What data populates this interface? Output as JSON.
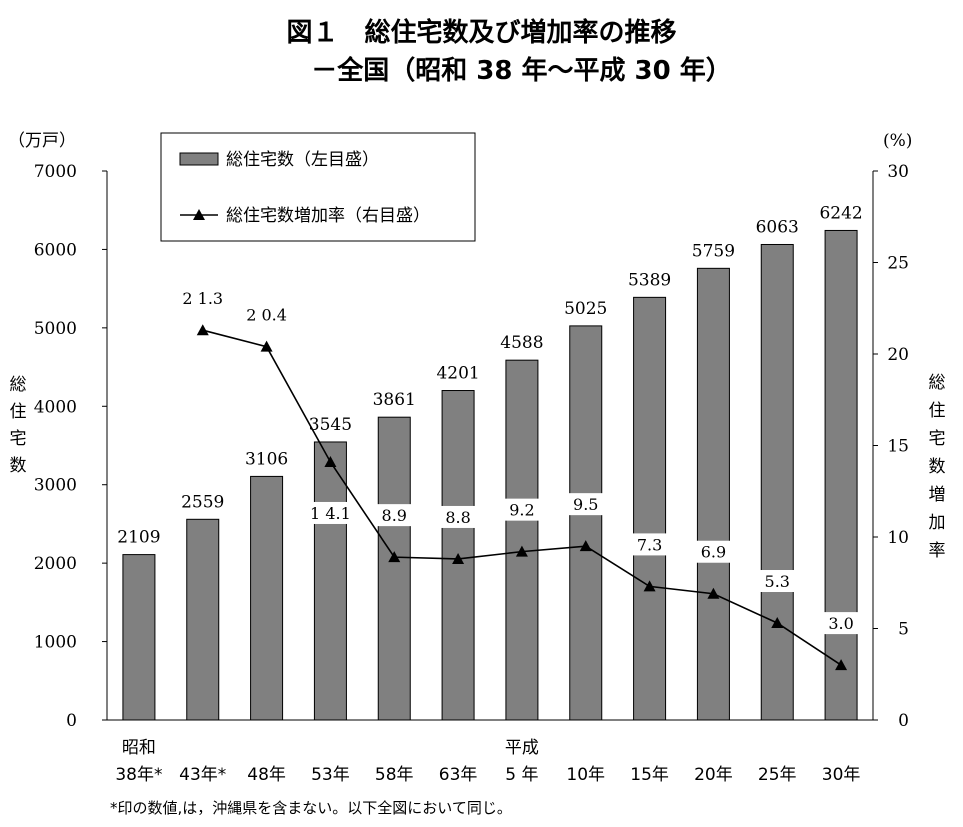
{
  "title_line1": "図１　総住宅数及び増加率の推移",
  "title_line2": "－全国（昭和 38 年～平成 30 年）",
  "footnote": "*印の数値,は，沖縄県を含まない。以下全図において同じ。",
  "colors": {
    "bar": "#808080",
    "line": "#000000"
  },
  "chart_data": {
    "type": "bar",
    "categories": [
      "38年*",
      "43年*",
      "48年",
      "53年",
      "58年",
      "63年",
      "5 年",
      "10年",
      "15年",
      "20年",
      "25年",
      "30年"
    ],
    "era_labels": [
      {
        "text": "昭和",
        "category_index": 0
      },
      {
        "text": "平成",
        "category_index": 6
      }
    ],
    "y_left": {
      "unit": "（万戸）",
      "label": "総住宅数",
      "ylim": [
        0,
        7000
      ],
      "ticks": [
        0,
        1000,
        2000,
        3000,
        4000,
        5000,
        6000,
        7000
      ]
    },
    "y_right": {
      "unit": "(%)",
      "label": "総住宅数増加率",
      "ylim": [
        0,
        30
      ],
      "ticks": [
        0,
        5,
        10,
        15,
        20,
        25,
        30
      ]
    },
    "series": [
      {
        "name": "総住宅数（左目盛）",
        "type": "bar",
        "axis": "left",
        "values": [
          2109,
          2559,
          3106,
          3545,
          3861,
          4201,
          4588,
          5025,
          5389,
          5759,
          6063,
          6242
        ],
        "labels": [
          "2109",
          "2559",
          "3106",
          "3545",
          "3861",
          "4201",
          "4588",
          "5025",
          "5389",
          "5759",
          "6063",
          "6242"
        ]
      },
      {
        "name": "総住宅数増加率（右目盛）",
        "type": "line",
        "axis": "right",
        "marker": "triangle",
        "values": [
          null,
          21.3,
          20.4,
          14.1,
          8.9,
          8.8,
          9.2,
          9.5,
          7.3,
          6.9,
          5.3,
          3.0
        ],
        "labels": [
          null,
          "21.3",
          "20.4",
          "14.1",
          "8.9",
          "8.8",
          "9.2",
          "9.5",
          "7.3",
          "6.9",
          "5.3",
          "3.0"
        ]
      }
    ],
    "legend_position": "top-left",
    "grid": false
  }
}
